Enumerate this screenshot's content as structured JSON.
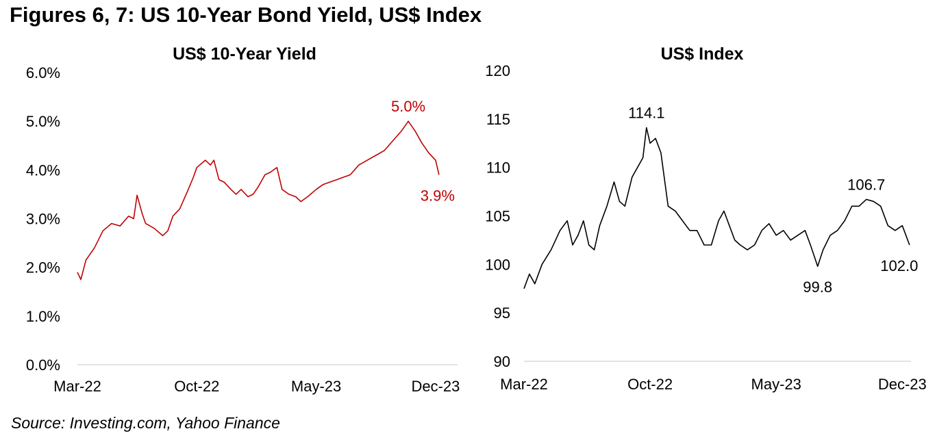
{
  "page": {
    "title": "Figures 6, 7: US 10-Year Bond Yield, US$ Index",
    "source": "Source: Investing.com, Yahoo Finance"
  },
  "chart_data": [
    {
      "type": "line",
      "title": "US$ 10-Year Yield",
      "color": "#c00000",
      "x_unit": "months since Mar-22",
      "xlim": [
        0,
        22
      ],
      "x_ticks": [
        {
          "x": 0,
          "label": "Mar-22"
        },
        {
          "x": 7,
          "label": "Oct-22"
        },
        {
          "x": 14,
          "label": "May-23"
        },
        {
          "x": 21,
          "label": "Dec-23"
        }
      ],
      "ylim": [
        0,
        6
      ],
      "y_ticks": [
        {
          "v": 0,
          "label": "0.0%"
        },
        {
          "v": 1,
          "label": "1.0%"
        },
        {
          "v": 2,
          "label": "2.0%"
        },
        {
          "v": 3,
          "label": "3.0%"
        },
        {
          "v": 4,
          "label": "4.0%"
        },
        {
          "v": 5,
          "label": "5.0%"
        },
        {
          "v": 6,
          "label": "6.0%"
        }
      ],
      "grid": false,
      "x": [
        0,
        0.2,
        0.5,
        1,
        1.5,
        2,
        2.5,
        3,
        3.3,
        3.5,
        3.8,
        4,
        4.5,
        5,
        5.3,
        5.6,
        6,
        6.5,
        6.8,
        7,
        7.5,
        7.8,
        8,
        8.3,
        8.6,
        9,
        9.3,
        9.6,
        10,
        10.3,
        10.6,
        11,
        11.3,
        11.7,
        12,
        12.4,
        12.8,
        13.1,
        13.5,
        14,
        14.4,
        14.8,
        15.2,
        15.6,
        16,
        16.5,
        17,
        17.5,
        18,
        18.5,
        19,
        19.4,
        19.8,
        20.2,
        20.6,
        21,
        21.2
      ],
      "values": [
        1.9,
        1.75,
        2.15,
        2.4,
        2.75,
        2.9,
        2.85,
        3.05,
        3.0,
        3.48,
        3.1,
        2.9,
        2.8,
        2.65,
        2.75,
        3.05,
        3.2,
        3.6,
        3.85,
        4.05,
        4.2,
        4.1,
        4.2,
        3.8,
        3.75,
        3.6,
        3.5,
        3.6,
        3.45,
        3.5,
        3.65,
        3.9,
        3.95,
        4.05,
        3.6,
        3.5,
        3.45,
        3.35,
        3.45,
        3.6,
        3.7,
        3.75,
        3.8,
        3.85,
        3.9,
        4.1,
        4.2,
        4.3,
        4.4,
        4.6,
        4.8,
        5.0,
        4.8,
        4.55,
        4.35,
        4.2,
        3.9
      ],
      "annotations": [
        {
          "x": 19.4,
          "y": 5.0,
          "label": "5.0%",
          "pos": "above"
        },
        {
          "x": 21.2,
          "y": 3.9,
          "label": "3.9%",
          "pos": "below"
        }
      ]
    },
    {
      "type": "line",
      "title": "US$ Index",
      "color": "#000000",
      "x_unit": "months since Mar-22",
      "xlim": [
        0,
        21.5
      ],
      "x_ticks": [
        {
          "x": 0,
          "label": "Mar-22"
        },
        {
          "x": 7,
          "label": "Oct-22"
        },
        {
          "x": 14,
          "label": "May-23"
        },
        {
          "x": 21,
          "label": "Dec-23"
        }
      ],
      "ylim": [
        90,
        120
      ],
      "y_ticks": [
        {
          "v": 90,
          "label": "90"
        },
        {
          "v": 95,
          "label": "95"
        },
        {
          "v": 100,
          "label": "100"
        },
        {
          "v": 105,
          "label": "105"
        },
        {
          "v": 110,
          "label": "110"
        },
        {
          "v": 115,
          "label": "115"
        },
        {
          "v": 120,
          "label": "120"
        }
      ],
      "grid": false,
      "x": [
        0,
        0.3,
        0.6,
        1,
        1.5,
        2,
        2.4,
        2.7,
        3,
        3.3,
        3.6,
        3.9,
        4.2,
        4.6,
        5,
        5.3,
        5.6,
        6,
        6.3,
        6.6,
        6.8,
        7,
        7.3,
        7.6,
        8,
        8.4,
        8.8,
        9.2,
        9.6,
        10,
        10.4,
        10.8,
        11.1,
        11.4,
        11.7,
        12,
        12.4,
        12.8,
        13.2,
        13.6,
        14,
        14.4,
        14.8,
        15.2,
        15.6,
        15.9,
        16.3,
        16.6,
        17,
        17.4,
        17.8,
        18.2,
        18.6,
        19,
        19.4,
        19.8,
        20.2,
        20.6,
        21,
        21.4
      ],
      "values": [
        97.5,
        99,
        98,
        100,
        101.5,
        103.5,
        104.5,
        102,
        103,
        104.5,
        102,
        101.5,
        104,
        106,
        108.5,
        106.5,
        106,
        109,
        110,
        111,
        114.1,
        112.5,
        113,
        111.5,
        106,
        105.5,
        104.5,
        103.5,
        103.5,
        102,
        102,
        104.5,
        105.5,
        104,
        102.5,
        102,
        101.5,
        102,
        103.5,
        104.2,
        103,
        103.5,
        102.5,
        103,
        103.5,
        102,
        99.8,
        101.5,
        103,
        103.5,
        104.5,
        106,
        106,
        106.7,
        106.5,
        106,
        104,
        103.5,
        104,
        102
      ],
      "annotations": [
        {
          "x": 6.8,
          "y": 114.1,
          "label": "114.1",
          "pos": "above"
        },
        {
          "x": 16.3,
          "y": 99.8,
          "label": "99.8",
          "pos": "below"
        },
        {
          "x": 19,
          "y": 106.7,
          "label": "106.7",
          "pos": "above"
        },
        {
          "x": 21.4,
          "y": 102.0,
          "label": "102.0",
          "pos": "below"
        }
      ]
    }
  ]
}
